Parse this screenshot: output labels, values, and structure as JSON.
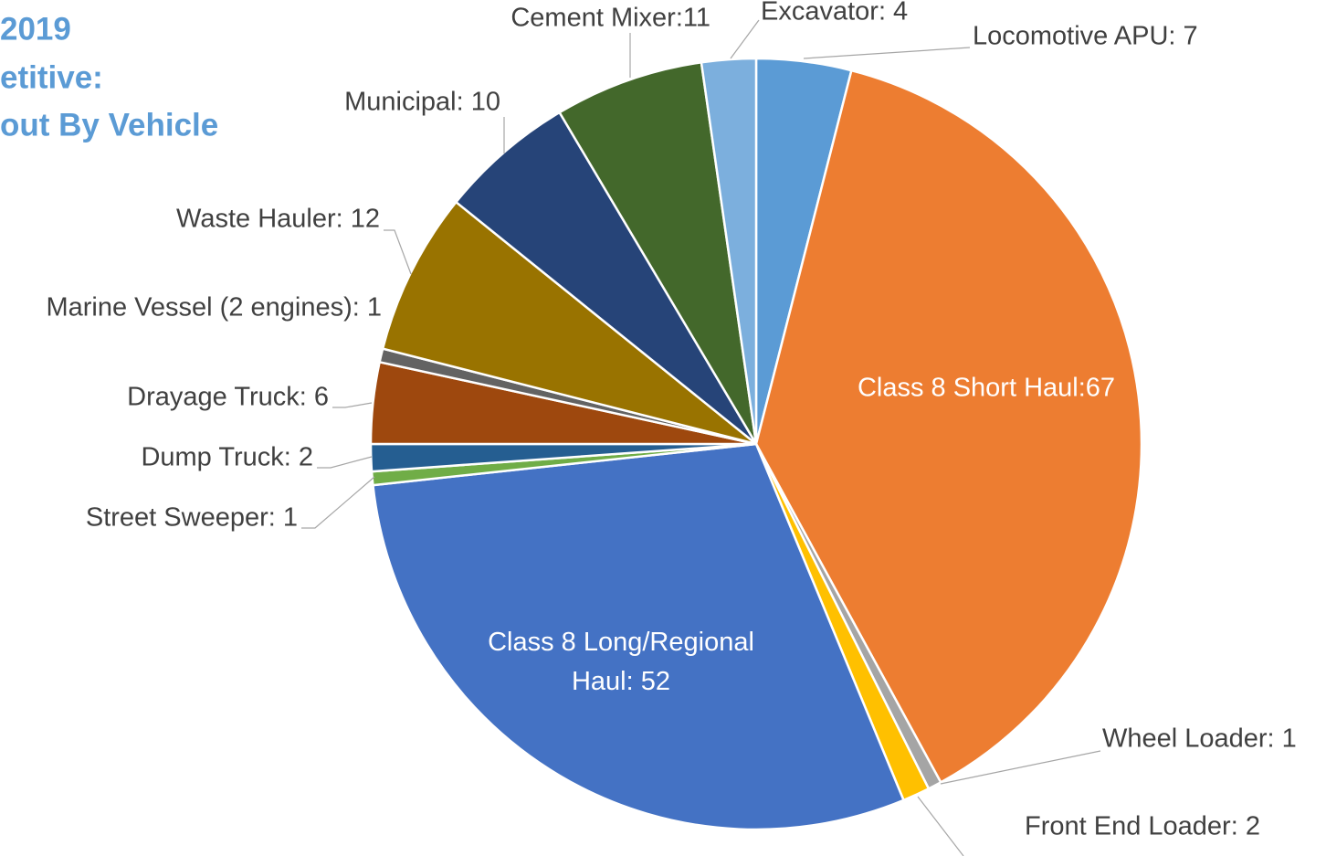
{
  "chart_data": {
    "type": "pie",
    "title_lines": [
      "2019",
      "etitive:",
      "out By Vehicle"
    ],
    "values": [
      7,
      67,
      1,
      2,
      52,
      1,
      2,
      6,
      1,
      12,
      10,
      11,
      4
    ],
    "value_labels": [
      "Locomotive APU: 7",
      "Class 8 Short Haul:67",
      "Wheel Loader: 1",
      "Front End Loader: 2",
      "Class 8 Long/Regional Haul: 52",
      "Street Sweeper: 1",
      "Dump Truck: 2",
      "Drayage Truck: 6",
      "Marine Vessel (2 engines): 1",
      "Waste Hauler: 12",
      "Municipal: 10",
      "Cement Mixer:11",
      "Excavator: 4"
    ],
    "colors": [
      "#5b9bd5",
      "#ed7d31",
      "#a5a5a5",
      "#ffc000",
      "#4472c4",
      "#70ad47",
      "#255e91",
      "#9e480e",
      "#636363",
      "#997300",
      "#264478",
      "#43682b",
      "#7cafdd"
    ]
  }
}
